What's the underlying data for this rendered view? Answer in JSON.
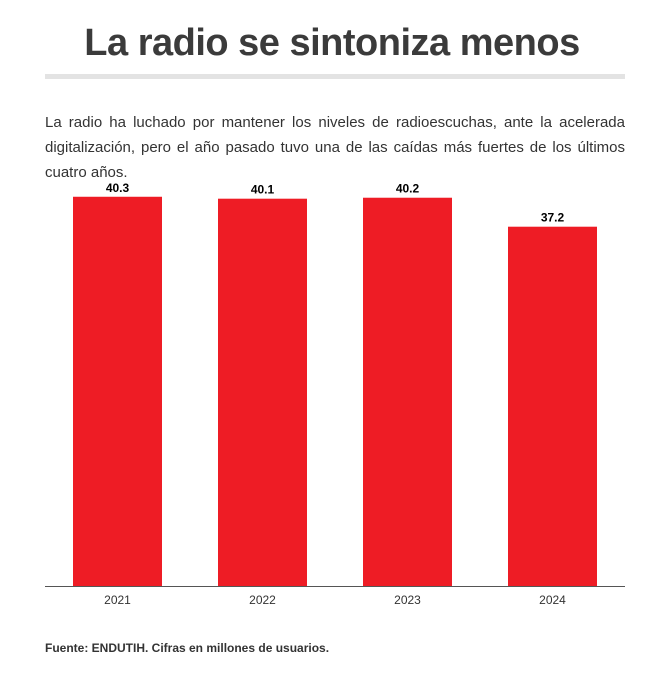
{
  "header": {
    "title": "La radio se sintoniza menos",
    "subtitle": "La radio ha luchado por mantener los niveles de radioescuchas, ante la acelerada digitalización, pero el año pasado tuvo una de las caídas más fuertes de los últimos cuatro años."
  },
  "footer": {
    "source": "Fuente: ENDUTIH. Cifras en millones de usuarios."
  },
  "colors": {
    "bar": "#ee1c25",
    "axis": "#555555",
    "label": "#000000"
  },
  "chart_data": {
    "type": "bar",
    "categories": [
      "2021",
      "2022",
      "2023",
      "2024"
    ],
    "values": [
      40.3,
      40.1,
      40.2,
      37.2
    ],
    "data_labels": [
      "40.3",
      "40.1",
      "40.2",
      "37.2"
    ],
    "title": "",
    "xlabel": "",
    "ylabel": "",
    "ylim": [
      0,
      41
    ],
    "grid": false,
    "legend": "none"
  }
}
